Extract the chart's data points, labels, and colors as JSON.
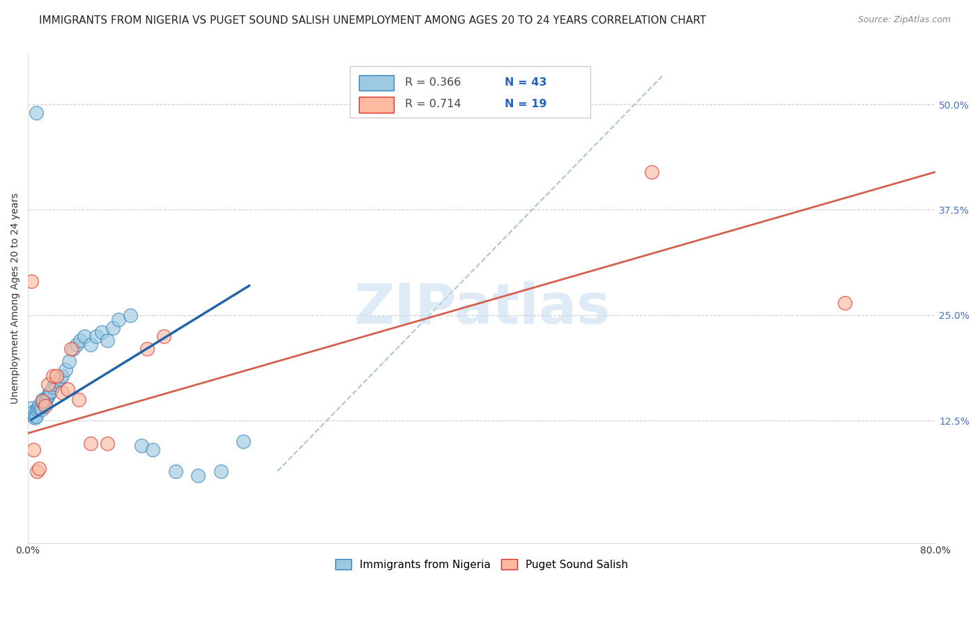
{
  "title": "IMMIGRANTS FROM NIGERIA VS PUGET SOUND SALISH UNEMPLOYMENT AMONG AGES 20 TO 24 YEARS CORRELATION CHART",
  "source": "Source: ZipAtlas.com",
  "ylabel": "Unemployment Among Ages 20 to 24 years",
  "xlim": [
    0.0,
    0.8
  ],
  "ylim": [
    -0.02,
    0.56
  ],
  "xticks": [
    0.0,
    0.16,
    0.32,
    0.48,
    0.64,
    0.8
  ],
  "xticklabels": [
    "0.0%",
    "",
    "",
    "",
    "",
    "80.0%"
  ],
  "yticks_right": [
    0.0,
    0.125,
    0.25,
    0.375,
    0.5
  ],
  "yticklabels_right": [
    "",
    "12.5%",
    "25.0%",
    "37.5%",
    "50.0%"
  ],
  "watermark": "ZIPatlas",
  "color_blue": "#9ecae1",
  "color_pink": "#fcbba1",
  "color_blue_edge": "#3182bd",
  "color_pink_edge": "#de2d26",
  "color_blue_line": "#2166ac",
  "color_pink_line": "#d6604d",
  "color_dash": "#aac4dd",
  "blue_scatter_x": [
    0.003,
    0.004,
    0.005,
    0.006,
    0.007,
    0.008,
    0.009,
    0.01,
    0.011,
    0.012,
    0.013,
    0.014,
    0.015,
    0.016,
    0.017,
    0.018,
    0.019,
    0.02,
    0.022,
    0.024,
    0.026,
    0.028,
    0.03,
    0.033,
    0.036,
    0.04,
    0.043,
    0.046,
    0.05,
    0.055,
    0.06,
    0.065,
    0.07,
    0.075,
    0.08,
    0.09,
    0.1,
    0.11,
    0.13,
    0.15,
    0.17,
    0.19,
    0.007
  ],
  "blue_scatter_y": [
    0.14,
    0.135,
    0.13,
    0.128,
    0.13,
    0.138,
    0.14,
    0.143,
    0.14,
    0.138,
    0.15,
    0.145,
    0.148,
    0.15,
    0.153,
    0.155,
    0.158,
    0.16,
    0.165,
    0.168,
    0.172,
    0.175,
    0.178,
    0.185,
    0.195,
    0.21,
    0.215,
    0.22,
    0.225,
    0.215,
    0.225,
    0.23,
    0.22,
    0.235,
    0.245,
    0.25,
    0.095,
    0.09,
    0.065,
    0.06,
    0.065,
    0.1,
    0.49
  ],
  "pink_scatter_x": [
    0.003,
    0.005,
    0.008,
    0.01,
    0.013,
    0.015,
    0.018,
    0.022,
    0.025,
    0.03,
    0.035,
    0.045,
    0.055,
    0.07,
    0.105,
    0.12,
    0.038,
    0.55,
    0.72
  ],
  "pink_scatter_y": [
    0.29,
    0.09,
    0.065,
    0.068,
    0.148,
    0.142,
    0.168,
    0.178,
    0.178,
    0.158,
    0.162,
    0.15,
    0.098,
    0.098,
    0.21,
    0.225,
    0.21,
    0.42,
    0.265
  ],
  "blue_line_x": [
    0.003,
    0.195
  ],
  "blue_line_y": [
    0.126,
    0.285
  ],
  "pink_line_x": [
    0.0,
    0.8
  ],
  "pink_line_y": [
    0.11,
    0.42
  ],
  "dash_line_x": [
    0.22,
    0.56
  ],
  "dash_line_y": [
    0.065,
    0.535
  ],
  "grid_color": "#cccccc",
  "background_color": "#ffffff",
  "title_fontsize": 11,
  "axis_fontsize": 10,
  "tick_fontsize": 10,
  "legend_label1": "Immigrants from Nigeria",
  "legend_label2": "Puget Sound Salish"
}
